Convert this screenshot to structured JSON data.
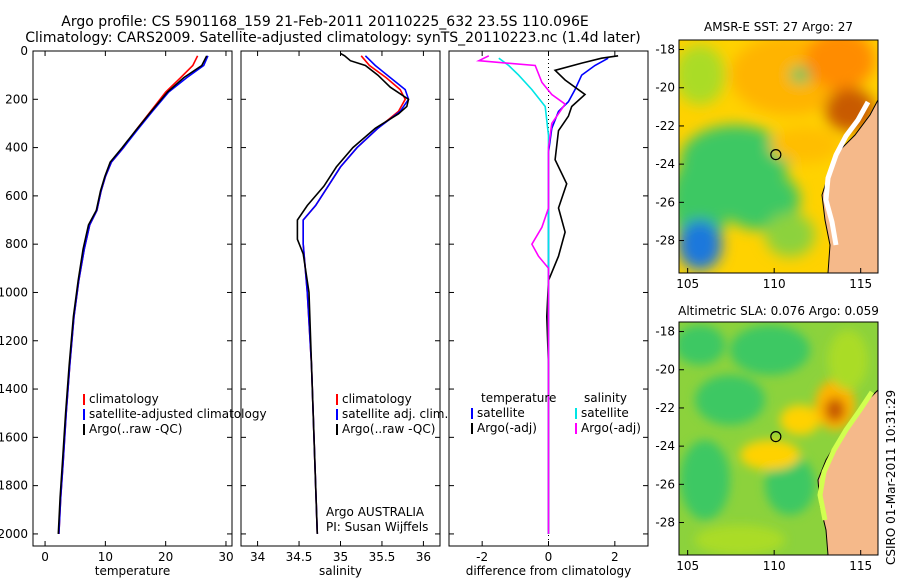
{
  "header": {
    "line1": "Argo profile: CS 5901168_159 21-Feb-2011 20110225_632 23.5S 110.096E",
    "line2": "Climatology: CARS2009. Satellite-adjusted climatology: synTS_20110223.nc (1.4d later)"
  },
  "side_label": "CSIRO 01-Mar-2011 10:31:29",
  "colors": {
    "red": "#ff0000",
    "blue": "#0000ff",
    "black": "#000000",
    "cyan": "#00e5e5",
    "magenta": "#ff00ff",
    "land": "#f5b98a"
  },
  "chart_data": [
    {
      "type": "line",
      "id": "temperature",
      "xlabel": "temperature",
      "xlim": [
        -2,
        31
      ],
      "ylim": [
        2050,
        0
      ],
      "xticks": [
        0,
        10,
        20,
        30
      ],
      "yticks": [
        0,
        200,
        400,
        600,
        800,
        1000,
        1200,
        1400,
        1600,
        1800,
        2000
      ],
      "legend": [
        "climatology",
        "satellite-adjusted climatology",
        "Argo(..raw -QC)"
      ],
      "series": [
        {
          "name": "climatology",
          "color": "red",
          "points": [
            [
              25.3,
              20
            ],
            [
              24.5,
              60
            ],
            [
              22.5,
              110
            ],
            [
              20,
              170
            ],
            [
              17.5,
              250
            ],
            [
              15,
              330
            ],
            [
              13,
              400
            ],
            [
              11,
              460
            ],
            [
              10,
              520
            ],
            [
              9.3,
              580
            ],
            [
              8.6,
              660
            ],
            [
              7.4,
              720
            ],
            [
              6.5,
              820
            ],
            [
              5.6,
              950
            ],
            [
              4.8,
              1100
            ],
            [
              4.1,
              1300
            ],
            [
              3.5,
              1500
            ],
            [
              3,
              1700
            ],
            [
              2.6,
              1850
            ],
            [
              2.3,
              2000
            ]
          ]
        },
        {
          "name": "satellite-adjusted climatology",
          "color": "blue",
          "points": [
            [
              27,
              20
            ],
            [
              26.3,
              60
            ],
            [
              23.5,
              110
            ],
            [
              20.5,
              170
            ],
            [
              17.8,
              250
            ],
            [
              15.2,
              330
            ],
            [
              13,
              400
            ],
            [
              11,
              460
            ],
            [
              10,
              520
            ],
            [
              9.3,
              580
            ],
            [
              8.6,
              660
            ],
            [
              7.4,
              720
            ],
            [
              6.5,
              820
            ],
            [
              5.6,
              950
            ],
            [
              4.8,
              1100
            ],
            [
              4.1,
              1300
            ],
            [
              3.5,
              1500
            ],
            [
              3,
              1700
            ],
            [
              2.6,
              1850
            ],
            [
              2.3,
              2000
            ]
          ]
        },
        {
          "name": "Argo(..raw -QC)",
          "color": "black",
          "points": [
            [
              26.8,
              20
            ],
            [
              26,
              60
            ],
            [
              23,
              110
            ],
            [
              20.3,
              170
            ],
            [
              17.6,
              250
            ],
            [
              15,
              330
            ],
            [
              12.8,
              400
            ],
            [
              10.8,
              460
            ],
            [
              9.9,
              520
            ],
            [
              9.2,
              580
            ],
            [
              8.5,
              660
            ],
            [
              7.2,
              720
            ],
            [
              6.3,
              820
            ],
            [
              5.5,
              950
            ],
            [
              4.7,
              1100
            ],
            [
              4,
              1300
            ],
            [
              3.4,
              1500
            ],
            [
              2.9,
              1700
            ],
            [
              2.5,
              1850
            ],
            [
              2.2,
              2000
            ]
          ]
        }
      ]
    },
    {
      "type": "line",
      "id": "salinity",
      "xlabel": "salinity",
      "xlim": [
        33.8,
        36.2
      ],
      "ylim": [
        2050,
        0
      ],
      "xticks": [
        34,
        34.5,
        35,
        35.5,
        36
      ],
      "yticks": [
        0,
        200,
        400,
        600,
        800,
        1000,
        1200,
        1400,
        1600,
        1800,
        2000
      ],
      "legend": [
        "climatology",
        "satellite adj. clim.",
        "Argo(..raw -QC)"
      ],
      "annotation": [
        "Argo AUSTRALIA",
        "PI: Susan Wijffels"
      ],
      "series": [
        {
          "name": "climatology",
          "color": "red",
          "points": [
            [
              35.25,
              20
            ],
            [
              35.35,
              60
            ],
            [
              35.55,
              110
            ],
            [
              35.72,
              160
            ],
            [
              35.78,
              200
            ],
            [
              35.7,
              250
            ],
            [
              35.45,
              320
            ],
            [
              35.2,
              400
            ],
            [
              35,
              480
            ],
            [
              34.85,
              560
            ],
            [
              34.7,
              640
            ],
            [
              34.55,
              700
            ],
            [
              34.55,
              800
            ],
            [
              34.6,
              1000
            ],
            [
              34.65,
              1300
            ],
            [
              34.68,
              1600
            ],
            [
              34.72,
              2000
            ]
          ]
        },
        {
          "name": "satellite adj. clim.",
          "color": "blue",
          "points": [
            [
              35.3,
              20
            ],
            [
              35.42,
              60
            ],
            [
              35.6,
              110
            ],
            [
              35.78,
              160
            ],
            [
              35.82,
              200
            ],
            [
              35.72,
              250
            ],
            [
              35.45,
              320
            ],
            [
              35.2,
              400
            ],
            [
              35,
              480
            ],
            [
              34.85,
              560
            ],
            [
              34.7,
              640
            ],
            [
              34.55,
              700
            ],
            [
              34.55,
              800
            ],
            [
              34.6,
              1000
            ],
            [
              34.65,
              1300
            ],
            [
              34.68,
              1600
            ],
            [
              34.72,
              2000
            ]
          ]
        },
        {
          "name": "Argo(..raw -QC)",
          "color": "black",
          "points": [
            [
              35,
              10
            ],
            [
              35.05,
              20
            ],
            [
              35.12,
              40
            ],
            [
              35.3,
              60
            ],
            [
              35.45,
              100
            ],
            [
              35.6,
              150
            ],
            [
              35.82,
              200
            ],
            [
              35.8,
              230
            ],
            [
              35.7,
              260
            ],
            [
              35.42,
              320
            ],
            [
              35.15,
              400
            ],
            [
              34.95,
              480
            ],
            [
              34.8,
              560
            ],
            [
              34.6,
              640
            ],
            [
              34.48,
              700
            ],
            [
              34.48,
              780
            ],
            [
              34.55,
              840
            ],
            [
              34.62,
              1000
            ],
            [
              34.65,
              1300
            ],
            [
              34.68,
              1600
            ],
            [
              34.72,
              2000
            ]
          ]
        }
      ]
    },
    {
      "type": "line",
      "id": "difference",
      "xlabel": "difference from climatology",
      "xlim": [
        -3,
        3
      ],
      "ylim": [
        2050,
        0
      ],
      "xticks": [
        -2,
        0,
        2
      ],
      "yticks": [
        0,
        200,
        400,
        600,
        800,
        1000,
        1200,
        1400,
        1600,
        1800,
        2000
      ],
      "legend_temperature": [
        "temperature",
        "satellite",
        "Argo(-adj)"
      ],
      "legend_salinity": [
        "salinity",
        "satellite",
        "Argo(-adj)"
      ],
      "series": [
        {
          "name": "temperature satellite",
          "color": "blue",
          "points": [
            [
              1.8,
              30
            ],
            [
              1.4,
              60
            ],
            [
              1,
              100
            ],
            [
              0.8,
              160
            ],
            [
              0.6,
              210
            ],
            [
              0.3,
              250
            ],
            [
              0.1,
              320
            ],
            [
              0,
              420
            ],
            [
              0,
              600
            ],
            [
              0,
              900
            ],
            [
              0,
              1300
            ],
            [
              0,
              1700
            ],
            [
              0,
              2000
            ]
          ]
        },
        {
          "name": "temperature Argo(-adj)",
          "color": "black",
          "points": [
            [
              2.1,
              20
            ],
            [
              1.6,
              30
            ],
            [
              1,
              50
            ],
            [
              0.2,
              80
            ],
            [
              0.5,
              120
            ],
            [
              1.1,
              180
            ],
            [
              0.7,
              230
            ],
            [
              0.6,
              270
            ],
            [
              0.3,
              330
            ],
            [
              0.2,
              450
            ],
            [
              0.55,
              550
            ],
            [
              0.3,
              650
            ],
            [
              0.5,
              750
            ],
            [
              0.3,
              850
            ],
            [
              0,
              950
            ],
            [
              -0.05,
              1100
            ],
            [
              0,
              1300
            ],
            [
              0,
              1600
            ],
            [
              0,
              2000
            ]
          ]
        },
        {
          "name": "salinity satellite",
          "color": "cyan",
          "points": [
            [
              -1.5,
              30
            ],
            [
              -1.2,
              60
            ],
            [
              -0.9,
              100
            ],
            [
              -0.5,
              160
            ],
            [
              -0.1,
              230
            ],
            [
              0,
              350
            ],
            [
              0,
              600
            ],
            [
              0,
              900
            ],
            [
              0,
              1300
            ],
            [
              0,
              2000
            ]
          ]
        },
        {
          "name": "salinity Argo(-adj)",
          "color": "magenta",
          "points": [
            [
              -1.8,
              20
            ],
            [
              -2.1,
              40
            ],
            [
              -0.4,
              60
            ],
            [
              -0.2,
              130
            ],
            [
              0.1,
              180
            ],
            [
              0.5,
              220
            ],
            [
              0.1,
              300
            ],
            [
              0,
              400
            ],
            [
              0,
              650
            ],
            [
              -0.2,
              730
            ],
            [
              -0.5,
              800
            ],
            [
              -0.3,
              850
            ],
            [
              0,
              900
            ],
            [
              0,
              1300
            ],
            [
              0,
              2000
            ]
          ]
        }
      ]
    },
    {
      "type": "heatmap",
      "id": "sst-map",
      "title": "AMSR-E SST: 27 Argo: 27",
      "xlim": [
        104.5,
        116
      ],
      "ylim": [
        -29.7,
        -17.5
      ],
      "xticks": [
        105,
        110,
        115
      ],
      "yticks": [
        -18,
        -20,
        -22,
        -24,
        -26,
        -28
      ],
      "marker": [
        110.096,
        -23.5
      ]
    },
    {
      "type": "heatmap",
      "id": "sla-map",
      "title": "Altimetric SLA: 0.076 Argo: 0.059",
      "xlim": [
        104.5,
        116
      ],
      "ylim": [
        -29.7,
        -17.5
      ],
      "xticks": [
        105,
        110,
        115
      ],
      "yticks": [
        -18,
        -20,
        -22,
        -24,
        -26,
        -28
      ],
      "marker": [
        110.096,
        -23.5
      ]
    }
  ]
}
